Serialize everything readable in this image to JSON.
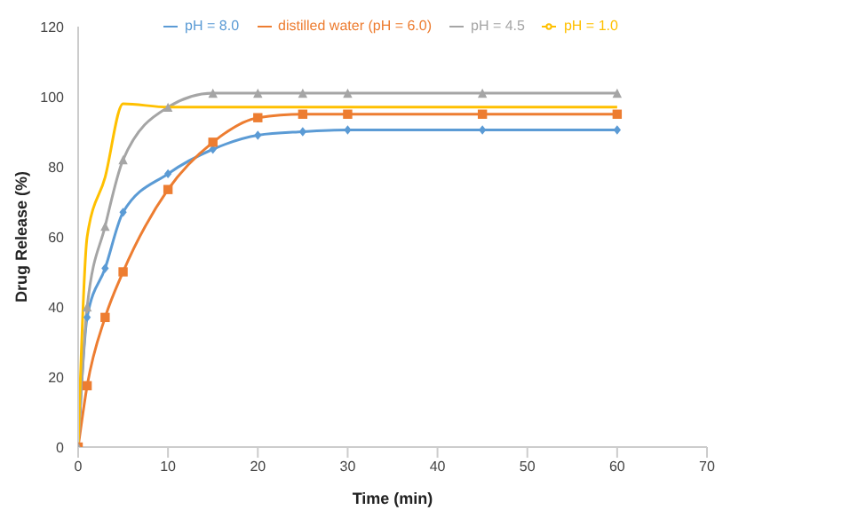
{
  "chart_data": {
    "type": "line",
    "xlabel": "Time (min)",
    "ylabel": "Drug Release (%)",
    "x": [
      0,
      1,
      3,
      5,
      10,
      15,
      20,
      25,
      30,
      45,
      60
    ],
    "series": [
      {
        "name": "pH = 8.0",
        "color": "#5b9bd5",
        "marker": "diamond",
        "values": [
          0,
          37,
          51,
          67,
          78,
          85,
          89,
          90,
          90.5,
          90.5,
          90.5
        ]
      },
      {
        "name": "distilled water   (pH = 6.0)",
        "color": "#ed7d31",
        "marker": "square",
        "values": [
          0,
          17.5,
          37,
          50,
          73.5,
          87,
          94,
          95,
          95,
          95,
          95
        ]
      },
      {
        "name": "pH = 4.5",
        "color": "#a5a5a5",
        "marker": "triangle",
        "values": [
          0,
          40,
          63,
          82,
          97,
          101,
          101,
          101,
          101,
          101,
          101
        ]
      },
      {
        "name": "pH = 1.0",
        "color": "#ffc000",
        "marker": "none",
        "values": [
          0,
          60,
          77,
          98,
          97,
          97,
          97,
          97,
          97,
          97,
          97
        ]
      }
    ],
    "xlim": [
      0,
      70
    ],
    "xticks": [
      0,
      10,
      20,
      30,
      40,
      50,
      60,
      70
    ],
    "ylim": [
      0,
      120
    ],
    "yticks": [
      0,
      20,
      40,
      60,
      80,
      100,
      120
    ],
    "grid": false,
    "legend": "top"
  }
}
